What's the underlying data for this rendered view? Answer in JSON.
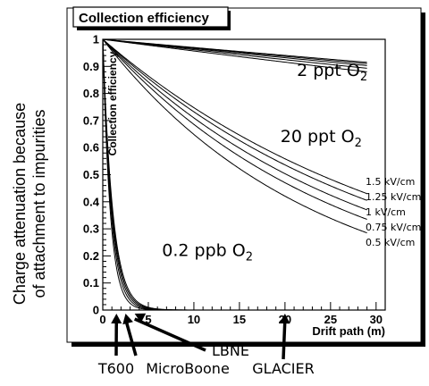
{
  "chart_data": {
    "type": "line",
    "title": "Collection efficiency",
    "xlabel": "Drift path (m)",
    "ylabel": "Collection efficiency",
    "side_label": [
      "Charge attenuation because",
      "of attachment to impurities"
    ],
    "xlim": [
      0,
      31
    ],
    "ylim": [
      0,
      1
    ],
    "x_ticks": [
      0,
      5,
      10,
      15,
      20,
      25,
      30
    ],
    "y_ticks": [
      0,
      0.1,
      0.2,
      0.3,
      0.4,
      0.5,
      0.6,
      0.7,
      0.8,
      0.9,
      1
    ],
    "x_tick_labels": [
      "0",
      "5",
      "10",
      "15",
      "20",
      "25",
      "30"
    ],
    "y_tick_labels": [
      "0",
      "0.1",
      "0.2",
      "0.3",
      "0.4",
      "0.5",
      "0.6",
      "0.7",
      "0.8",
      "0.9",
      "1"
    ],
    "curve_x_max": 29,
    "field_labels": [
      "1.5 kV/cm",
      "1.25 kV/cm",
      "1 kV/cm",
      "0.75 kV/cm",
      "0.5 kV/cm"
    ],
    "groups": [
      {
        "label": "2 ppt",
        "species": "O",
        "sub": "2",
        "label_x": 21.3,
        "label_y": 0.865,
        "end_values": [
          0.915,
          0.91,
          0.903,
          0.893,
          0.88
        ]
      },
      {
        "label": "20 ppt",
        "species": "O",
        "sub": "2",
        "label_x": 19.5,
        "label_y": 0.62,
        "end_values": [
          0.43,
          0.405,
          0.37,
          0.335,
          0.285
        ]
      },
      {
        "label": "0.2 ppb",
        "species": "O",
        "sub": "2",
        "label_x": 6.5,
        "label_y": 0.2,
        "end_values": [
          0.064,
          0.055,
          0.046,
          0.036,
          0.025
        ],
        "ref_x": 3
      }
    ],
    "detectors": [
      {
        "label": "T600",
        "x": 1.5
      },
      {
        "label": "MicroBoone",
        "x": 2.5
      },
      {
        "label": "LBNE",
        "x": 3.5
      },
      {
        "label": "GLACIER",
        "x": 20
      }
    ],
    "grid": false
  }
}
